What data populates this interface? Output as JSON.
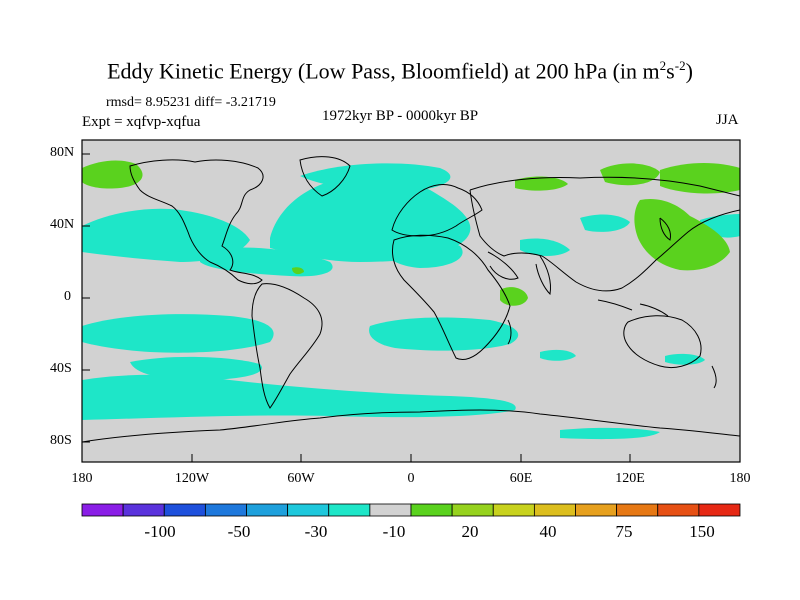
{
  "title": {
    "main": "Eddy Kinetic Energy (Low Pass, Bloomfield) at 200 hPa (in m",
    "sup1": "2",
    "mid": "s",
    "sup2": "-2",
    "end": ")"
  },
  "stats": "rmsd= 8.95231 diff= -3.21719",
  "experiment": "Expt = xqfvp-xqfua",
  "period": "1972kyr BP - 0000kyr BP",
  "season": "JJA",
  "lat_ticks": [
    "80N",
    "40N",
    "0",
    "40S",
    "80S"
  ],
  "lon_ticks": [
    "180",
    "120W",
    "60W",
    "0",
    "60E",
    "120E",
    "180"
  ],
  "colorbar": {
    "colors": [
      "#8a1ee6",
      "#5a32dc",
      "#1e50dc",
      "#1e78dc",
      "#1ea0dc",
      "#1ec8dc",
      "#1ee6c8",
      "#d2d2d2",
      "#5ad21e",
      "#96d21e",
      "#c8d21e",
      "#dcbe1e",
      "#e6a01e",
      "#e67814",
      "#e65014",
      "#e62814"
    ],
    "labels": [
      "-100",
      "-50",
      "-30",
      "-10",
      "20",
      "40",
      "75",
      "150"
    ]
  },
  "colors": {
    "land_background": "#d2d2d2",
    "cyan_anomaly": "#1ee6c8",
    "green_anomaly": "#5ad21e",
    "yellow_anomaly": "#c8d21e"
  }
}
